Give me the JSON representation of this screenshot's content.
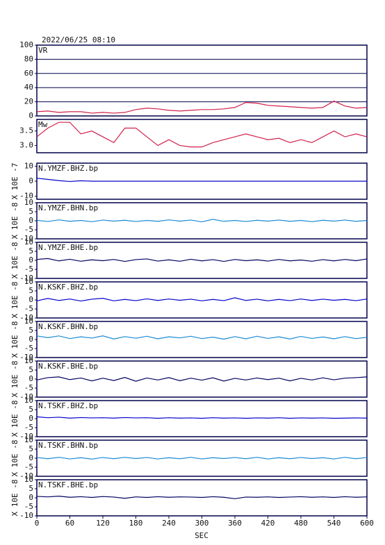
{
  "title": "2022/06/25 08:10",
  "x_label": "SEC",
  "chart_data": [
    {
      "type": "line",
      "name": "VR",
      "x": [
        0,
        20,
        40,
        60,
        80,
        100,
        120,
        140,
        160,
        180,
        200,
        220,
        240,
        260,
        280,
        300,
        320,
        340,
        360,
        380,
        400,
        420,
        440,
        460,
        480,
        500,
        520,
        540,
        560,
        580,
        600
      ],
      "series": [
        {
          "color": "#d0204a",
          "values": [
            6,
            7,
            5,
            6,
            6,
            4,
            5,
            4,
            5,
            9,
            11,
            10,
            8,
            7,
            8,
            9,
            9,
            10,
            12,
            19,
            18,
            15,
            14,
            13,
            12,
            11,
            12,
            21,
            14,
            11,
            12
          ]
        }
      ],
      "xlim": [
        0,
        600
      ],
      "ylim": [
        0,
        100
      ],
      "yticks": [
        0,
        20,
        40,
        60,
        80,
        100
      ],
      "grid": true
    },
    {
      "type": "line",
      "name": "Mw",
      "x": [
        0,
        20,
        40,
        60,
        80,
        100,
        120,
        140,
        160,
        180,
        200,
        220,
        240,
        260,
        280,
        300,
        320,
        340,
        360,
        380,
        400,
        420,
        440,
        460,
        480,
        500,
        520,
        540,
        560,
        580,
        600
      ],
      "series": [
        {
          "color": "#d0204a",
          "values": [
            3.3,
            3.6,
            3.8,
            3.8,
            3.4,
            3.5,
            3.3,
            3.1,
            3.6,
            3.6,
            3.3,
            3.0,
            3.2,
            3.0,
            2.95,
            2.95,
            3.1,
            3.2,
            3.3,
            3.4,
            3.3,
            3.2,
            3.25,
            3.1,
            3.2,
            3.1,
            3.3,
            3.5,
            3.3,
            3.4,
            3.3
          ]
        }
      ],
      "xlim": [
        0,
        600
      ],
      "ylim": [
        2.75,
        3.9
      ],
      "yticks": [
        {
          "value": 3,
          "label": "3.0"
        },
        3.5
      ],
      "grid": false
    },
    {
      "type": "line",
      "name": "N.YMZF.BHZ.bp",
      "y_label": "X 10E -7",
      "x": [
        0,
        20,
        40,
        60,
        80,
        100,
        120,
        140,
        160,
        180,
        200,
        220,
        240,
        260,
        280,
        300,
        320,
        340,
        360,
        380,
        400,
        420,
        440,
        460,
        480,
        500,
        520,
        540,
        560,
        580,
        600
      ],
      "series": [
        {
          "color": "#0000cc",
          "values": [
            2,
            1.2,
            0.4,
            -0.2,
            0.3,
            0,
            0,
            0,
            0,
            0,
            0,
            0,
            0,
            0,
            0,
            0,
            0,
            0,
            0,
            0,
            0,
            0,
            0,
            0,
            0,
            0,
            0,
            0,
            0,
            0,
            0
          ]
        }
      ],
      "xlim": [
        0,
        600
      ],
      "ylim": [
        -12,
        12
      ],
      "yticks": [
        -10,
        0,
        10
      ]
    },
    {
      "type": "line",
      "name": "N.YMZF.BHN.bp",
      "y_label": "X 10E -8",
      "x": [
        0,
        20,
        40,
        60,
        80,
        100,
        120,
        140,
        160,
        180,
        200,
        220,
        240,
        260,
        280,
        300,
        320,
        340,
        360,
        380,
        400,
        420,
        440,
        460,
        480,
        500,
        520,
        540,
        560,
        580,
        600
      ],
      "series": [
        {
          "color": "#1a8ad4",
          "values": [
            0.3,
            -0.4,
            0.5,
            -0.3,
            0.2,
            -0.5,
            0.4,
            -0.2,
            0.3,
            -0.4,
            0.2,
            -0.3,
            0.5,
            -0.2,
            0.4,
            -0.6,
            0.8,
            -0.3,
            0.2,
            -0.4,
            0.3,
            -0.2,
            0.4,
            -0.3,
            0.2,
            -0.5,
            0.3,
            -0.2,
            0.4,
            -0.3,
            0.2
          ]
        }
      ],
      "xlim": [
        0,
        600
      ],
      "ylim": [
        -10,
        10
      ],
      "yticks": [
        -10,
        -5,
        0,
        5,
        10
      ]
    },
    {
      "type": "line",
      "name": "N.YMZF.BHE.bp",
      "y_label": "X 10E -8",
      "x": [
        0,
        20,
        40,
        60,
        80,
        100,
        120,
        140,
        160,
        180,
        200,
        220,
        240,
        260,
        280,
        300,
        320,
        340,
        360,
        380,
        400,
        420,
        440,
        460,
        480,
        500,
        520,
        540,
        560,
        580,
        600
      ],
      "series": [
        {
          "color": "#000060",
          "values": [
            0.5,
            1,
            -0.3,
            0.6,
            -0.5,
            0.3,
            -0.2,
            0.5,
            -0.6,
            0.4,
            0.8,
            -0.4,
            0.3,
            -0.5,
            0.6,
            -0.3,
            0.4,
            -0.6,
            0.5,
            -0.2,
            0.3,
            -0.4,
            0.5,
            -0.3,
            0.2,
            -0.5,
            0.4,
            -0.3,
            0.5,
            -0.2,
            0.8
          ]
        }
      ],
      "xlim": [
        0,
        600
      ],
      "ylim": [
        -10,
        10
      ],
      "yticks": [
        -10,
        -5,
        0,
        5,
        10
      ]
    },
    {
      "type": "line",
      "name": "N.KSKF.BHZ.bp",
      "y_label": "X 10E -8",
      "x": [
        0,
        20,
        40,
        60,
        80,
        100,
        120,
        140,
        160,
        180,
        200,
        220,
        240,
        260,
        280,
        300,
        320,
        340,
        360,
        380,
        400,
        420,
        440,
        460,
        480,
        500,
        520,
        540,
        560,
        580,
        600
      ],
      "series": [
        {
          "color": "#0000cc",
          "values": [
            -0.5,
            0.8,
            -0.3,
            0.5,
            -0.6,
            0.4,
            0.9,
            -0.5,
            0.3,
            -0.4,
            0.6,
            -0.3,
            0.5,
            -0.2,
            0.4,
            -0.5,
            0.3,
            -0.4,
            1.2,
            -0.3,
            0.4,
            -0.5,
            0.3,
            -0.4,
            0.5,
            -0.3,
            0.4,
            -0.2,
            0.3,
            -0.4,
            0.5
          ]
        }
      ],
      "xlim": [
        0,
        600
      ],
      "ylim": [
        -10,
        10
      ],
      "yticks": [
        -10,
        -5,
        0,
        5,
        10
      ]
    },
    {
      "type": "line",
      "name": "N.KSKF.BHN.bp",
      "y_label": "X 10E -8",
      "x": [
        0,
        20,
        40,
        60,
        80,
        100,
        120,
        140,
        160,
        180,
        200,
        220,
        240,
        260,
        280,
        300,
        320,
        340,
        360,
        380,
        400,
        420,
        440,
        460,
        480,
        500,
        520,
        540,
        560,
        580,
        600
      ],
      "series": [
        {
          "color": "#1a8ad4",
          "values": [
            2,
            1,
            2,
            0.5,
            1.5,
            0.8,
            2,
            0.3,
            1.6,
            0.7,
            1.8,
            0.4,
            1.5,
            0.9,
            1.8,
            0.5,
            1.3,
            0.2,
            1.6,
            0.4,
            1.8,
            0.6,
            1.5,
            0.3,
            1.7,
            0.6,
            1.4,
            0.4,
            1.6,
            0.5,
            1.2
          ]
        }
      ],
      "xlim": [
        0,
        600
      ],
      "ylim": [
        -10,
        10
      ],
      "yticks": [
        -10,
        -5,
        0,
        5,
        10
      ]
    },
    {
      "type": "line",
      "name": "N.KSKF.BHE.bp",
      "y_label": "X 10E -8",
      "x": [
        0,
        20,
        40,
        60,
        80,
        100,
        120,
        140,
        160,
        180,
        200,
        220,
        240,
        260,
        280,
        300,
        320,
        340,
        360,
        380,
        400,
        420,
        440,
        460,
        480,
        500,
        520,
        540,
        560,
        580,
        600
      ],
      "series": [
        {
          "color": "#000060",
          "values": [
            -0.5,
            0.8,
            1.2,
            -0.3,
            0.6,
            -1,
            0.5,
            -0.8,
            0.9,
            -1.2,
            0.6,
            -0.5,
            0.8,
            -0.9,
            0.5,
            -0.6,
            0.7,
            -1.1,
            0.4,
            -0.5,
            0.6,
            -0.3,
            0.5,
            -1,
            0.4,
            -0.5,
            0.7,
            -0.4,
            0.5,
            0.8,
            1.2
          ]
        }
      ],
      "xlim": [
        0,
        600
      ],
      "ylim": [
        -10,
        10
      ],
      "yticks": [
        -10,
        -5,
        0,
        5,
        10
      ]
    },
    {
      "type": "line",
      "name": "N.TSKF.BHZ.bp",
      "y_label": "X 10E -8",
      "x": [
        0,
        20,
        40,
        60,
        80,
        100,
        120,
        140,
        160,
        180,
        200,
        220,
        240,
        260,
        280,
        300,
        320,
        340,
        360,
        380,
        400,
        420,
        440,
        460,
        480,
        500,
        520,
        540,
        560,
        580,
        600
      ],
      "series": [
        {
          "color": "#0000cc",
          "values": [
            1,
            0.5,
            0.8,
            0.3,
            0.6,
            0.4,
            0.5,
            0.3,
            0.6,
            0.4,
            0.5,
            0.2,
            0.5,
            0.3,
            0.4,
            0.2,
            0.5,
            0.3,
            0.4,
            0.2,
            0.4,
            0.3,
            0.5,
            0.2,
            0.4,
            0.3,
            0.4,
            0.2,
            0.3,
            0.4,
            0.3
          ]
        }
      ],
      "xlim": [
        0,
        600
      ],
      "ylim": [
        -10,
        10
      ],
      "yticks": [
        -10,
        -5,
        0,
        5,
        10
      ]
    },
    {
      "type": "line",
      "name": "N.TSKF.BHN.bp",
      "y_label": "X 10E -8",
      "x": [
        0,
        20,
        40,
        60,
        80,
        100,
        120,
        140,
        160,
        180,
        200,
        220,
        240,
        260,
        280,
        300,
        320,
        340,
        360,
        380,
        400,
        420,
        440,
        460,
        480,
        500,
        520,
        540,
        560,
        580,
        600
      ],
      "series": [
        {
          "color": "#1a8ad4",
          "values": [
            0.4,
            -0.3,
            0.5,
            -0.4,
            0.3,
            -0.5,
            0.4,
            -0.3,
            0.5,
            -0.2,
            0.4,
            -0.4,
            0.3,
            -0.3,
            0.5,
            -0.4,
            0.3,
            -0.2,
            0.4,
            -0.3,
            0.5,
            -0.4,
            0.3,
            -0.3,
            0.4,
            -0.2,
            0.3,
            -0.4,
            0.5,
            -0.3,
            0.4
          ]
        }
      ],
      "xlim": [
        0,
        600
      ],
      "ylim": [
        -10,
        10
      ],
      "yticks": [
        -10,
        -5,
        0,
        5,
        10
      ]
    },
    {
      "type": "line",
      "name": "N.TSKF.BHE.bp",
      "y_label": "X 10E -8",
      "x": [
        0,
        20,
        40,
        60,
        80,
        100,
        120,
        140,
        160,
        180,
        200,
        220,
        240,
        260,
        280,
        300,
        320,
        340,
        360,
        380,
        400,
        420,
        440,
        460,
        480,
        500,
        520,
        540,
        560,
        580,
        600
      ],
      "series": [
        {
          "color": "#000060",
          "values": [
            0.8,
            0.5,
            0.9,
            0.3,
            0.6,
            0.2,
            0.7,
            0.4,
            -0.3,
            0.5,
            0.2,
            0.6,
            0.3,
            0.5,
            0.4,
            0.2,
            0.6,
            0.3,
            -0.5,
            0.4,
            0.3,
            0.5,
            0.2,
            0.4,
            0.6,
            0.3,
            0.5,
            0.2,
            0.6,
            0.3,
            0.5
          ]
        }
      ],
      "xlim": [
        0,
        600
      ],
      "ylim": [
        -10,
        10
      ],
      "yticks": [
        -10,
        -5,
        0,
        5,
        10
      ],
      "xticks": [
        0,
        60,
        120,
        180,
        240,
        300,
        360,
        420,
        480,
        540,
        600
      ]
    }
  ]
}
